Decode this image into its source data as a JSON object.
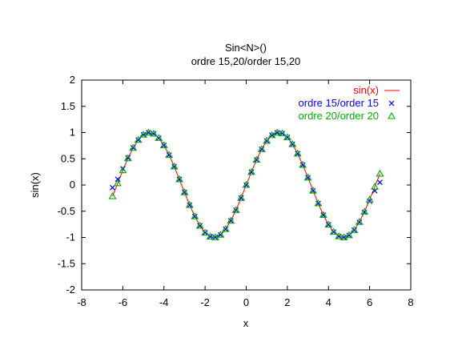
{
  "chart_data": {
    "type": "line",
    "title": "Sin<N>()",
    "subtitle": "ordre 15,20/order 15,20",
    "xlabel": "x",
    "ylabel": "sin(x)",
    "xlim": [
      -8,
      8
    ],
    "ylim": [
      -2,
      2
    ],
    "x_ticks": [
      -8,
      -6,
      -4,
      -2,
      0,
      2,
      4,
      6,
      8
    ],
    "y_ticks": [
      -2,
      -1.5,
      -1,
      -0.5,
      0,
      0.5,
      1,
      1.5,
      2
    ],
    "x_tick_labels": [
      "-8",
      "-6",
      "-4",
      "-2",
      "0",
      "2",
      "4",
      "6",
      "8"
    ],
    "y_tick_labels": [
      "-2",
      "-1.5",
      "-1",
      "-0.5",
      "0",
      "0.5",
      "1",
      "1.5",
      "2"
    ],
    "grid": false,
    "legend_position": "top-right",
    "series": [
      {
        "name": "sin(x)",
        "style": "line",
        "color": "#ff0000",
        "x": [
          -6.5,
          -6.25,
          -6.0,
          -5.75,
          -5.5,
          -5.25,
          -5.0,
          -4.75,
          -4.5,
          -4.25,
          -4.0,
          -3.75,
          -3.5,
          -3.25,
          -3.0,
          -2.75,
          -2.5,
          -2.25,
          -2.0,
          -1.75,
          -1.5,
          -1.25,
          -1.0,
          -0.75,
          -0.5,
          -0.25,
          0.0,
          0.25,
          0.5,
          0.75,
          1.0,
          1.25,
          1.5,
          1.75,
          2.0,
          2.25,
          2.5,
          2.75,
          3.0,
          3.25,
          3.5,
          3.75,
          4.0,
          4.25,
          4.5,
          4.75,
          5.0,
          5.25,
          5.5,
          5.75,
          6.0,
          6.25,
          6.5
        ],
        "y": [
          -0.215,
          0.033,
          0.279,
          0.509,
          0.706,
          0.859,
          0.959,
          0.999,
          0.978,
          0.895,
          0.757,
          0.572,
          0.351,
          0.108,
          -0.141,
          -0.382,
          -0.598,
          -0.778,
          -0.909,
          -0.984,
          -0.997,
          -0.949,
          -0.841,
          -0.682,
          -0.479,
          -0.247,
          0.0,
          0.247,
          0.479,
          0.682,
          0.841,
          0.949,
          0.997,
          0.984,
          0.909,
          0.778,
          0.598,
          0.382,
          0.141,
          -0.108,
          -0.351,
          -0.572,
          -0.757,
          -0.895,
          -0.978,
          -0.999,
          -0.959,
          -0.859,
          -0.706,
          -0.509,
          -0.279,
          -0.033,
          0.215
        ]
      },
      {
        "name": "ordre 15/order 15",
        "style": "points",
        "marker": "x",
        "color": "#0000ff",
        "x": [
          -6.5,
          -6.25,
          -6.0,
          -5.75,
          -5.5,
          -5.25,
          -5.0,
          -4.75,
          -4.5,
          -4.25,
          -4.0,
          -3.75,
          -3.5,
          -3.25,
          -3.0,
          -2.75,
          -2.5,
          -2.25,
          -2.0,
          -1.75,
          -1.5,
          -1.25,
          -1.0,
          -0.75,
          -0.5,
          -0.25,
          0.0,
          0.25,
          0.5,
          0.75,
          1.0,
          1.25,
          1.5,
          1.75,
          2.0,
          2.25,
          2.5,
          2.75,
          3.0,
          3.25,
          3.5,
          3.75,
          4.0,
          4.25,
          4.5,
          4.75,
          5.0,
          5.25,
          5.5,
          5.75,
          6.0,
          6.25,
          6.5
        ],
        "y": [
          -0.05,
          0.11,
          0.31,
          0.52,
          0.71,
          0.86,
          0.96,
          0.999,
          0.978,
          0.895,
          0.757,
          0.572,
          0.351,
          0.108,
          -0.141,
          -0.382,
          -0.598,
          -0.778,
          -0.909,
          -0.984,
          -0.997,
          -0.949,
          -0.841,
          -0.682,
          -0.479,
          -0.247,
          0.0,
          0.247,
          0.479,
          0.682,
          0.841,
          0.949,
          0.997,
          0.984,
          0.909,
          0.778,
          0.598,
          0.382,
          0.141,
          -0.108,
          -0.351,
          -0.572,
          -0.757,
          -0.895,
          -0.978,
          -0.999,
          -0.96,
          -0.86,
          -0.71,
          -0.52,
          -0.31,
          -0.11,
          0.05
        ]
      },
      {
        "name": "ordre 20/order 20",
        "style": "points",
        "marker": "triangle",
        "color": "#00b000",
        "x": [
          -6.5,
          -6.25,
          -6.0,
          -5.75,
          -5.5,
          -5.25,
          -5.0,
          -4.75,
          -4.5,
          -4.25,
          -4.0,
          -3.75,
          -3.5,
          -3.25,
          -3.0,
          -2.75,
          -2.5,
          -2.25,
          -2.0,
          -1.75,
          -1.5,
          -1.25,
          -1.0,
          -0.75,
          -0.5,
          -0.25,
          0.0,
          0.25,
          0.5,
          0.75,
          1.0,
          1.25,
          1.5,
          1.75,
          2.0,
          2.25,
          2.5,
          2.75,
          3.0,
          3.25,
          3.5,
          3.75,
          4.0,
          4.25,
          4.5,
          4.75,
          5.0,
          5.25,
          5.5,
          5.75,
          6.0,
          6.25,
          6.5
        ],
        "y": [
          -0.215,
          0.033,
          0.279,
          0.509,
          0.706,
          0.859,
          0.959,
          0.999,
          0.978,
          0.895,
          0.757,
          0.572,
          0.351,
          0.108,
          -0.141,
          -0.382,
          -0.598,
          -0.778,
          -0.909,
          -0.984,
          -0.997,
          -0.949,
          -0.841,
          -0.682,
          -0.479,
          -0.247,
          0.0,
          0.247,
          0.479,
          0.682,
          0.841,
          0.949,
          0.997,
          0.984,
          0.909,
          0.778,
          0.598,
          0.382,
          0.141,
          -0.108,
          -0.351,
          -0.572,
          -0.757,
          -0.895,
          -0.978,
          -0.999,
          -0.959,
          -0.859,
          -0.706,
          -0.509,
          -0.279,
          -0.033,
          0.215
        ]
      }
    ]
  }
}
